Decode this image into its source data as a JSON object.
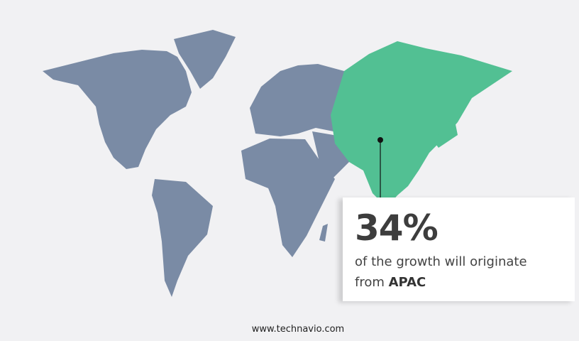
{
  "colors": {
    "background": "#f1f1f3",
    "land": "#7a8ba5",
    "highlight": "#52c093"
  },
  "highlight_region": "APAC",
  "callout": {
    "value": "34%",
    "text": "of the growth will originate",
    "prefix": "from",
    "region": "APAC"
  },
  "footer": {
    "url": "www.technavio.com"
  }
}
